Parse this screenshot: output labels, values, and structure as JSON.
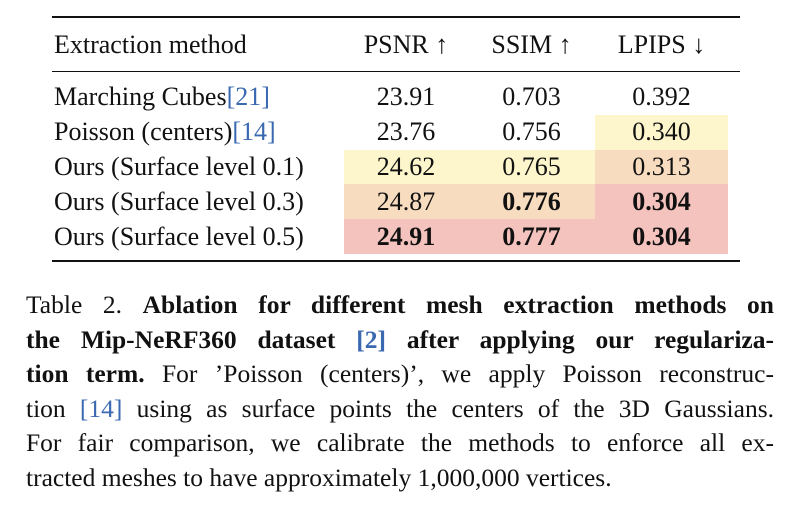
{
  "table": {
    "headers": {
      "method": "Extraction method",
      "psnr": "PSNR ↑",
      "ssim": "SSIM ↑",
      "lpips": "LPIPS ↓"
    },
    "rows": [
      {
        "method": "Marching Cubes ",
        "cite": "[21]",
        "psnr": "23.91",
        "ssim": "0.703",
        "lpips": "0.392"
      },
      {
        "method": "Poisson (centers) ",
        "cite": "[14]",
        "psnr": "23.76",
        "ssim": "0.756",
        "lpips": "0.340"
      },
      {
        "method": "Ours (Surface level 0.1)",
        "cite": "",
        "psnr": "24.62",
        "ssim": "0.765",
        "lpips": "0.313"
      },
      {
        "method": "Ours (Surface level 0.3)",
        "cite": "",
        "psnr": "24.87",
        "ssim": "0.776",
        "lpips": "0.304"
      },
      {
        "method": "Ours (Surface level 0.5)",
        "cite": "",
        "psnr": "24.91",
        "ssim": "0.777",
        "lpips": "0.304"
      }
    ],
    "highlight_colors": {
      "third": "#fdf6cc",
      "second": "#f8dcbf",
      "first": "#f4c3bd"
    }
  },
  "caption": {
    "l1_a": "Table 2.  ",
    "l1_b": "Ablation for different mesh extraction methods on",
    "l2_a": "the Mip-NeRF360 dataset ",
    "l2_cite": "[2]",
    "l2_b": " after applying our regulariza-",
    "l3_bold": "tion term.",
    "l3_rest": " For ’Poisson (centers)’, we apply Poisson reconstruc-",
    "l4_a": "tion ",
    "l4_cite": "[14]",
    "l4_b": " using as surface points the centers of the 3D Gaussians.",
    "l5": "For fair comparison, we calibrate the methods to enforce all ex-",
    "l6": "tracted meshes to have approximately 1,000,000 vertices."
  }
}
